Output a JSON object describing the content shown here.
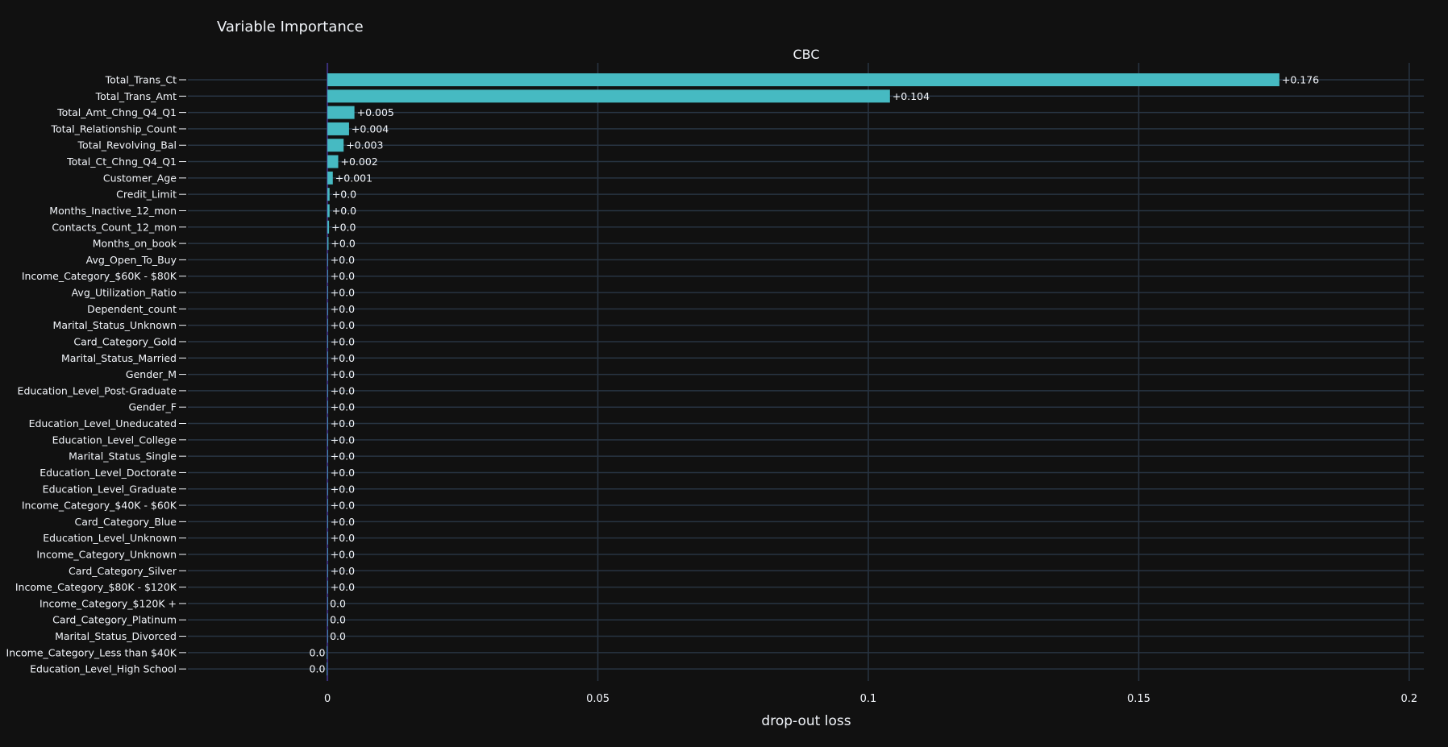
{
  "title": "Variable Importance",
  "chart_data": {
    "type": "bar",
    "orientation": "horizontal",
    "title": "Variable Importance",
    "subtitle": "CBC",
    "xlabel": "drop-out loss",
    "ylabel": "",
    "xlim": [
      -0.0258,
      0.2027
    ],
    "xticks": [
      0,
      0.05,
      0.1,
      0.15,
      0.2
    ],
    "xtick_labels": [
      "0",
      "0.05",
      "0.1",
      "0.15",
      "0.2"
    ],
    "grid": true,
    "legend": "none",
    "bar_color": "#46bac2",
    "categories": [
      "Total_Trans_Ct",
      "Total_Trans_Amt",
      "Total_Amt_Chng_Q4_Q1",
      "Total_Relationship_Count",
      "Total_Revolving_Bal",
      "Total_Ct_Chng_Q4_Q1",
      "Customer_Age",
      "Credit_Limit",
      "Months_Inactive_12_mon",
      "Contacts_Count_12_mon",
      "Months_on_book",
      "Avg_Open_To_Buy",
      "Income_Category_$60K - $80K",
      "Avg_Utilization_Ratio",
      "Dependent_count",
      "Marital_Status_Unknown",
      "Card_Category_Gold",
      "Marital_Status_Married",
      "Gender_M",
      "Education_Level_Post-Graduate",
      "Gender_F",
      "Education_Level_Uneducated",
      "Education_Level_College",
      "Marital_Status_Single",
      "Education_Level_Doctorate",
      "Education_Level_Graduate",
      "Income_Category_$40K - $60K",
      "Card_Category_Blue",
      "Education_Level_Unknown",
      "Income_Category_Unknown",
      "Card_Category_Silver",
      "Income_Category_$80K - $120K",
      "Income_Category_$120K +",
      "Card_Category_Platinum",
      "Marital_Status_Divorced",
      "Income_Category_Less than $40K",
      "Education_Level_High School"
    ],
    "values": [
      0.176,
      0.104,
      0.005,
      0.004,
      0.003,
      0.002,
      0.001,
      0.0004,
      0.0004,
      0.0003,
      0.0002,
      0.0001,
      0.0001,
      0.0001,
      0.0001,
      0.0001,
      0.0001,
      0.0001,
      0.0001,
      0.0001,
      0.0001,
      0.0001,
      0.0001,
      0.0001,
      0.0001,
      0.0001,
      0.0001,
      0.0001,
      0.0001,
      0.0001,
      0.0001,
      0.0001,
      0.0,
      0.0,
      0.0,
      -0.0001,
      -0.0001
    ],
    "data_labels": [
      "+0.176",
      "+0.104",
      "+0.005",
      "+0.004",
      "+0.003",
      "+0.002",
      "+0.001",
      "+0.0",
      "+0.0",
      "+0.0",
      "+0.0",
      "+0.0",
      "+0.0",
      "+0.0",
      "+0.0",
      "+0.0",
      "+0.0",
      "+0.0",
      "+0.0",
      "+0.0",
      "+0.0",
      "+0.0",
      "+0.0",
      "+0.0",
      "+0.0",
      "+0.0",
      "+0.0",
      "+0.0",
      "+0.0",
      "+0.0",
      "+0.0",
      "+0.0",
      "0.0",
      "0.0",
      "0.0",
      "0.0",
      "0.0"
    ]
  },
  "colors": {
    "background": "#111111",
    "bar": "#46bac2",
    "grid": "#283442",
    "baseline": "#3a2f7a",
    "text": "#f2f5fa"
  }
}
